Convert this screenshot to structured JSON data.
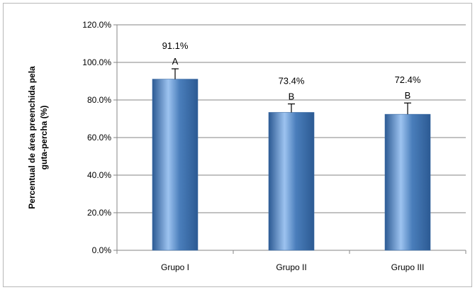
{
  "chart_data": {
    "type": "bar",
    "title": "",
    "xlabel": "",
    "ylabel_lines": [
      "Percentual de área preenchida pela",
      "guta-percha  (%)"
    ],
    "categories": [
      "Grupo I",
      "Grupo II",
      "Grupo III"
    ],
    "values": [
      91.1,
      73.4,
      72.4
    ],
    "error_plus": [
      5.5,
      4.5,
      6.0
    ],
    "value_labels": [
      "91.1%",
      "73.4%",
      "72.4%"
    ],
    "letters": [
      "A",
      "B",
      "B"
    ],
    "ylim": [
      0,
      120
    ],
    "yticks": [
      0,
      20,
      40,
      60,
      80,
      100,
      120
    ],
    "ytick_labels": [
      "0.0%",
      "20.0%",
      "40.0%",
      "60.0%",
      "80.0%",
      "100.0%",
      "120.0%"
    ],
    "grid": true,
    "legend": "none",
    "bar_color": "#4a7ebb",
    "bar_highlight": "#9dc3f0",
    "bar_shadow": "#2c5a93"
  }
}
